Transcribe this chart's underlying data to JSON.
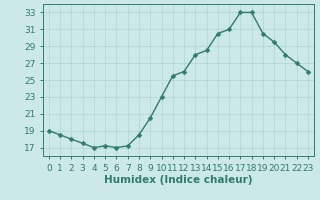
{
  "x": [
    0,
    1,
    2,
    3,
    4,
    5,
    6,
    7,
    8,
    9,
    10,
    11,
    12,
    13,
    14,
    15,
    16,
    17,
    18,
    19,
    20,
    21,
    22,
    23
  ],
  "y": [
    19,
    18.5,
    18,
    17.5,
    17,
    17.2,
    17,
    17.2,
    18.5,
    20.5,
    23,
    25.5,
    26,
    28,
    28.5,
    30.5,
    31,
    33,
    33,
    30.5,
    29.5,
    28,
    27,
    26
  ],
  "line_color": "#2e7d6e",
  "marker_color": "#2e7d6e",
  "bg_color": "#cce8e8",
  "grid_color": "#afd4d4",
  "xlabel": "Humidex (Indice chaleur)",
  "xlim": [
    -0.5,
    23.5
  ],
  "ylim": [
    16,
    34
  ],
  "yticks": [
    17,
    19,
    21,
    23,
    25,
    27,
    29,
    31,
    33
  ],
  "xtick_labels": [
    "0",
    "1",
    "2",
    "3",
    "4",
    "5",
    "6",
    "7",
    "8",
    "9",
    "10",
    "11",
    "12",
    "13",
    "14",
    "15",
    "16",
    "17",
    "18",
    "19",
    "20",
    "21",
    "22",
    "23"
  ],
  "xlabel_fontsize": 7.5,
  "tick_fontsize": 6.5,
  "marker_size": 2.5,
  "line_width": 1.0
}
